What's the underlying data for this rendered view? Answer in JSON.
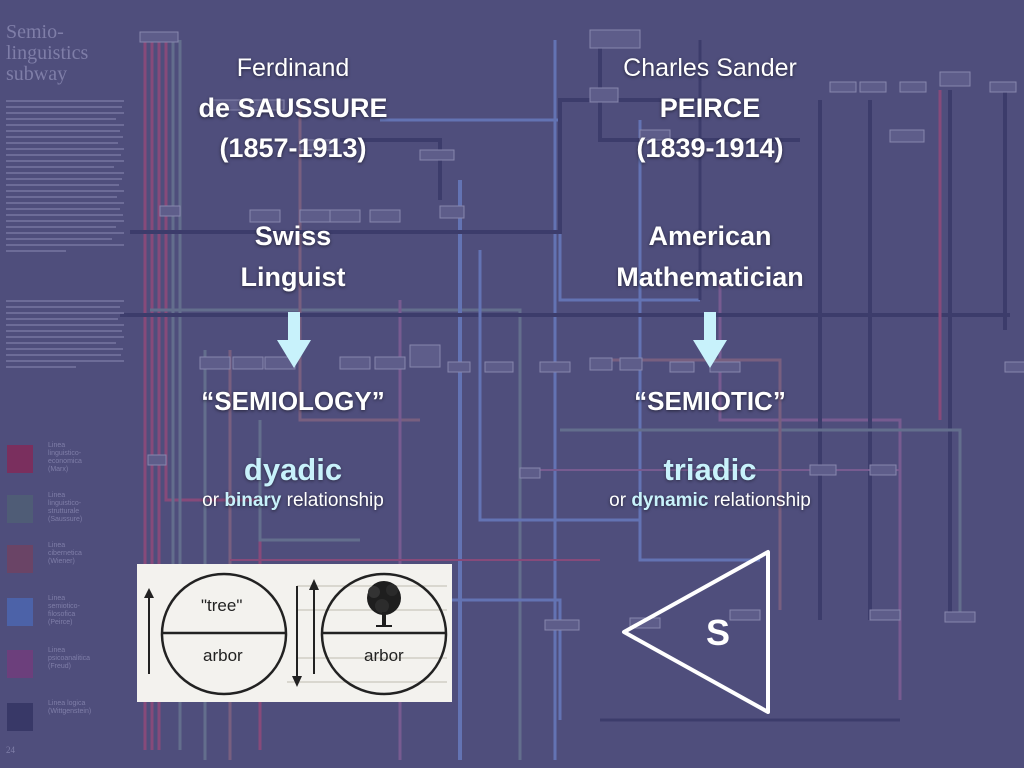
{
  "background_map": {
    "title": "Semio-\nlinguistics\nsubway",
    "legend": [
      {
        "label": "Linea\nlinguistico-\neconomica\n(Marx)",
        "color": "#7a2f5e"
      },
      {
        "label": "Linea\nlinguistico-\nstrutturale\n(Saussure)",
        "color": "#4f5c76"
      },
      {
        "label": "Linea\ncibernetica\n(Wiener)",
        "color": "#6a4466"
      },
      {
        "label": "Linea\nsemiotico-\nfilosofica\n(Peirce)",
        "color": "#4c62a8"
      },
      {
        "label": "Linea\npsicoanalitica\n(Freud)",
        "color": "#6c3f7c"
      },
      {
        "label": "Linea logica\n(Wittgenstein)",
        "color": "#383867"
      }
    ],
    "page_number": "24",
    "line_colors": {
      "marx": "#8a4a7a",
      "saussure": "#65708e",
      "wiener": "#7b6080",
      "peirce": "#6576b6",
      "freud": "#7a5c92",
      "wittgenstein": "#3c3c6b"
    }
  },
  "left": {
    "name_first": "Ferdinand",
    "name_last": "de SAUSSURE",
    "years": "(1857-1913)",
    "role_line1": "Swiss",
    "role_line2": "Linguist",
    "term": "“SEMIOLOGY”",
    "relation_word": "dyadic",
    "relation_prefix": "or ",
    "relation_emph": "binary",
    "relation_suffix": " relationship",
    "figure": {
      "signified_label": "\"tree\"",
      "signifier_label": "arbor",
      "signifier_label_2": "arbor",
      "tree_icon": "tree-icon"
    }
  },
  "right": {
    "name_first": "Charles Sander",
    "name_last": "PEIRCE",
    "years": "(1839-1914)",
    "role_line1": "American",
    "role_line2": "Mathematician",
    "term": "“SEMIOTIC”",
    "relation_word": "triadic",
    "relation_prefix": "or ",
    "relation_emph": "dynamic",
    "relation_suffix": " relationship",
    "triangle_label": "S"
  },
  "colors": {
    "background": "#4f4e7c",
    "text": "#ffffff",
    "accent": "#c8f2fb",
    "arrow_fill": "#c8f2fb"
  }
}
